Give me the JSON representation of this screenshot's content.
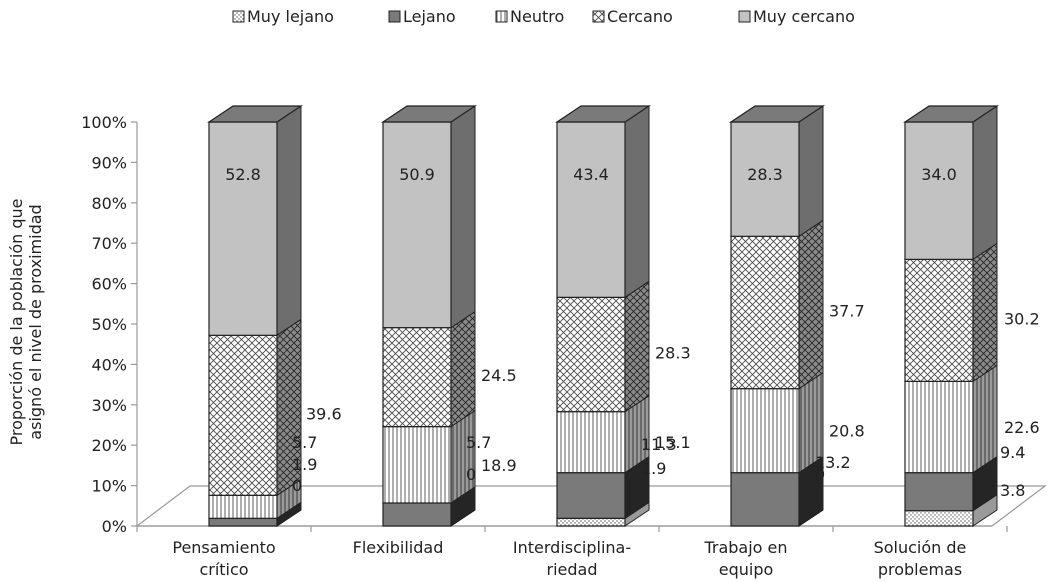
{
  "chart_data": {
    "type": "bar",
    "stacked": true,
    "three_d": true,
    "ylabel_lines": [
      "Proporción de la población que",
      "asignó el nivel de proximidad"
    ],
    "ylim": [
      0,
      100
    ],
    "yticks": [
      "0%",
      "10%",
      "20%",
      "30%",
      "40%",
      "50%",
      "60%",
      "70%",
      "80%",
      "90%",
      "100%"
    ],
    "legend_position": "top",
    "categories": [
      [
        "Pensamiento",
        "crítico"
      ],
      [
        "Flexibilidad"
      ],
      [
        "Interdisciplina-",
        "riedad"
      ],
      [
        "Trabajo en",
        "equipo"
      ],
      [
        "Solución de",
        "problemas"
      ]
    ],
    "series": [
      {
        "name": "Muy lejano",
        "values": [
          0,
          0,
          1.9,
          0,
          3.8
        ],
        "labels": [
          "0",
          "0",
          "1.9",
          "0",
          "3.8"
        ],
        "fill": "dots",
        "side_color": "#9a9a9a"
      },
      {
        "name": "Lejano",
        "values": [
          1.9,
          5.7,
          11.3,
          13.2,
          9.4
        ],
        "labels": [
          "1.9",
          "5.7",
          "11.3",
          "13.2",
          "9.4"
        ],
        "fill": "#7a7a7a",
        "side_color": "#252525"
      },
      {
        "name": "Neutro",
        "values": [
          5.7,
          18.9,
          15.1,
          20.8,
          22.6
        ],
        "labels": [
          "5.7",
          "18.9",
          "15.1",
          "20.8",
          "22.6"
        ],
        "fill": "vlines",
        "side_color": "vlines-dark"
      },
      {
        "name": "Cercano",
        "values": [
          39.6,
          24.5,
          28.3,
          37.7,
          30.2
        ],
        "labels": [
          "39.6",
          "24.5",
          "28.3",
          "37.7",
          "30.2"
        ],
        "fill": "cross",
        "side_color": "cross-dark"
      },
      {
        "name": "Muy cercano",
        "values": [
          52.8,
          50.9,
          43.4,
          28.3,
          34.0
        ],
        "labels": [
          "52.8",
          "50.9",
          "43.4",
          "28.3",
          "34.0"
        ],
        "fill": "#c2c2c2",
        "side_color": "#6e6e6e"
      }
    ]
  }
}
